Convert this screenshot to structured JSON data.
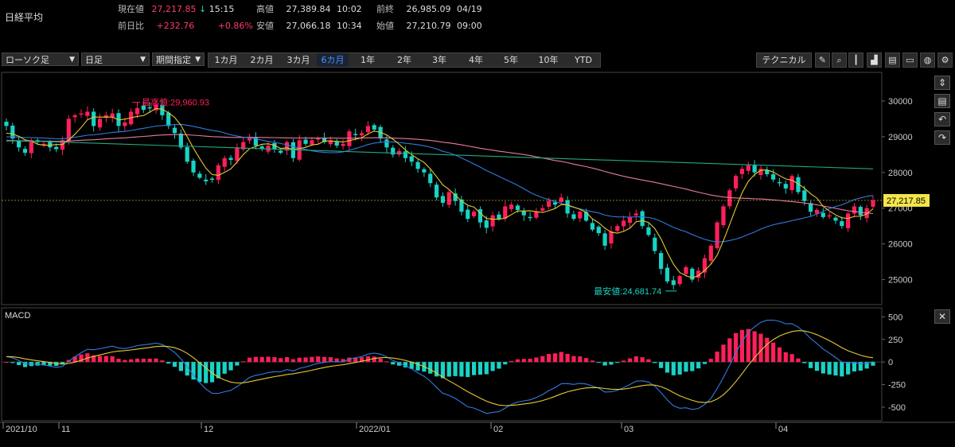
{
  "header": {
    "title": "日経平均",
    "current_label": "現在値",
    "current_value": "27,217.85",
    "current_arrow": "↓",
    "current_time": "15:15",
    "high_label": "高値",
    "high_value": "27,389.84",
    "high_time": "10:02",
    "prevclose_label": "前終",
    "prevclose_value": "26,985.09",
    "prevclose_date": "04/19",
    "change_label": "前日比",
    "change_value": "+232.76",
    "change_pct": "+0.86%",
    "low_label": "安値",
    "low_value": "27,066.18",
    "low_time": "10:34",
    "open_label": "始値",
    "open_value": "27,210.79",
    "open_time": "09:00"
  },
  "toolbar": {
    "chart_type": "ローソク足",
    "interval": "日足",
    "period_mode": "期間指定",
    "periods": [
      "1カ月",
      "2カ月",
      "3カ月",
      "6カ月",
      "1年",
      "2年",
      "3年",
      "4年",
      "5年",
      "10年",
      "YTD"
    ],
    "active_period": "6カ月",
    "technical_label": "テクニカル",
    "icons": [
      "pencil-icon",
      "zoom-icon",
      "candle-icon",
      "area-chart-icon",
      "document-icon",
      "folder-icon",
      "globe-icon",
      "settings-icon"
    ]
  },
  "colors": {
    "up": "#ff1f5a",
    "down": "#19d3c5",
    "ma_short": "#e8c832",
    "ma_mid": "#2f7be0",
    "ma_long": "#e87aa0",
    "ma_xlong": "#23a883",
    "macd": "#2f7be0",
    "signal": "#e8c832"
  },
  "chart_data": [
    {
      "type": "candlestick",
      "ylim": [
        24300,
        30800
      ],
      "yticks": [
        25000,
        26000,
        27000,
        28000,
        29000,
        30000
      ],
      "current_price_label": "27,217.85",
      "annotations": [
        {
          "text": "最高値:29,960.93",
          "value": 29960.93
        },
        {
          "text": "最安値:24,681.74",
          "value": 24681.74
        }
      ],
      "x_labels": [
        "2021/10",
        "11",
        "12",
        "2022/01",
        "02",
        "03",
        "04"
      ],
      "close_series": [
        29300,
        28950,
        28700,
        28550,
        28900,
        28850,
        28800,
        28700,
        28650,
        28900,
        29500,
        29600,
        29650,
        29700,
        29300,
        29500,
        29600,
        29650,
        29300,
        29400,
        29700,
        29800,
        29750,
        29800,
        29900,
        29600,
        29300,
        29100,
        28700,
        28300,
        28000,
        27850,
        27750,
        27800,
        28200,
        28400,
        28350,
        28700,
        28850,
        29000,
        28750,
        28650,
        28750,
        28650,
        28550,
        28850,
        28400,
        28900,
        28800,
        28900,
        28950,
        28850,
        28900,
        28750,
        28800,
        29150,
        29050,
        29100,
        29300,
        29200,
        28950,
        28700,
        28500,
        28600,
        28400,
        28300,
        28100,
        28000,
        27700,
        27300,
        27150,
        27450,
        27200,
        26900,
        26700,
        26900,
        26600,
        26450,
        26800,
        26700,
        27050,
        27100,
        26950,
        26800,
        26750,
        26900,
        27000,
        27200,
        27100,
        27300,
        26850,
        26700,
        26900,
        26650,
        26400,
        26300,
        25950,
        26350,
        26500,
        26650,
        26750,
        26850,
        26500,
        26250,
        25800,
        25300,
        24950,
        24850,
        25100,
        25350,
        25000,
        25250,
        25600,
        25950,
        26600,
        27050,
        27500,
        27900,
        28100,
        28200,
        28000,
        28100,
        27950,
        27800,
        27700,
        27550,
        27900,
        27450,
        27200,
        26900,
        26950,
        26750,
        26800,
        26650,
        26500,
        26850,
        27050,
        26800,
        27000,
        27217
      ]
    },
    {
      "type": "bar",
      "title": "MACD",
      "ylim": [
        -650,
        600
      ],
      "yticks": [
        500,
        250,
        0,
        -250,
        -500
      ]
    }
  ]
}
